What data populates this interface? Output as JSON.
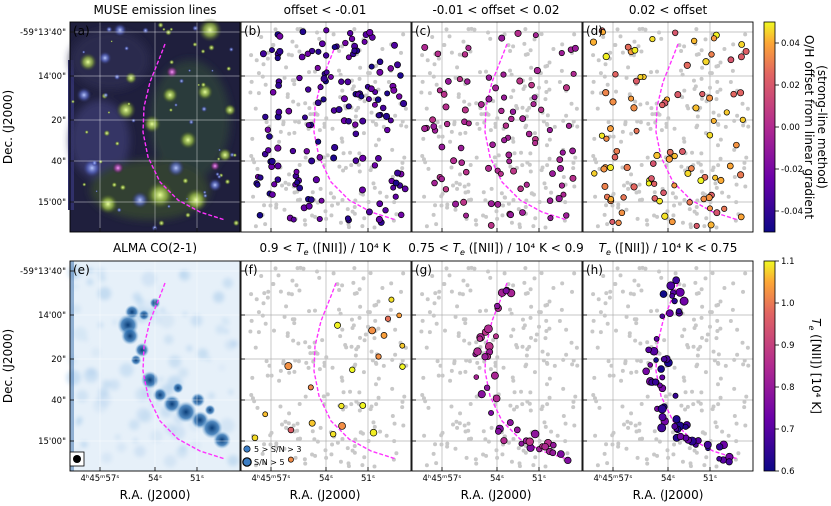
{
  "chart_data": {
    "type": "scatter",
    "panel_titles": {
      "a": "MUSE emission lines",
      "b": "offset < -0.01",
      "c": "-0.01 < offset < 0.02",
      "d": "0.02 < offset",
      "e": "ALMA CO(2-1)",
      "f_pre": "0.9 < ",
      "f_post": " ([NII]) / 10⁴ K",
      "g_pre": "0.75 < ",
      "g_post": " ([NII]) / 10⁴ K < 0.9",
      "h_post": " ([NII]) / 10⁴ K < 0.75",
      "te_T": "T",
      "te_e": "e"
    },
    "panel_letters": [
      "(a)",
      "(b)",
      "(c)",
      "(d)",
      "(e)",
      "(f)",
      "(g)",
      "(h)"
    ],
    "xlabel": "R.A. (J2000)",
    "ylabel": "Dec. (J2000)",
    "yticks": [
      "-59°13'40\"",
      "14'00\"",
      "20\"",
      "40\"",
      "15'00\""
    ],
    "xticks": [
      "4ʰ45ᵐ57ˢ",
      "54ˢ",
      "51ˢ"
    ],
    "cbar_top": {
      "label1": "O/H offset from linear gradient",
      "label2": "(strong-line method)",
      "ticks": [
        "0.04",
        "0.02",
        "0.00",
        "-0.02",
        "-0.04"
      ],
      "range": [
        -0.05,
        0.05
      ],
      "colormap": "plasma"
    },
    "cbar_bottom": {
      "label": "T",
      "label_sub": "e",
      "label_post": " ([NII]) [10⁴ K]",
      "ticks": [
        "1.1",
        "1.0",
        "0.9",
        "0.8",
        "0.7",
        "0.6"
      ],
      "range": [
        0.6,
        1.1
      ],
      "colormap": "plasma"
    },
    "legend": [
      "5 > S/N > 3",
      "S/N > 5"
    ],
    "colors": {
      "arc": "#ff33ff",
      "grey": "#c8c8c8",
      "legend_fill": "#3b7dc4"
    }
  }
}
